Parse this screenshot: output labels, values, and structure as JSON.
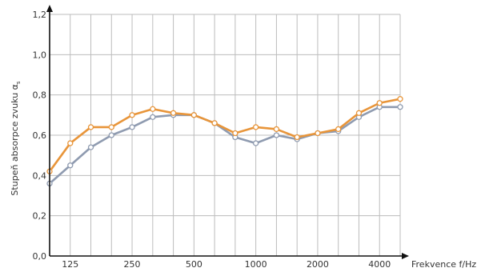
{
  "chart_data": {
    "type": "line",
    "xlabel": "Frekvence f/Hz",
    "ylabel": "Stupeň absorpce zvuku α",
    "ylabel_sub": "s",
    "ylim": [
      0,
      1.2
    ],
    "yticks": [
      "0,0",
      "0,2",
      "0,4",
      "0,6",
      "0,8",
      "1,0",
      "1,2"
    ],
    "x": [
      100,
      125,
      160,
      200,
      250,
      315,
      400,
      500,
      630,
      800,
      1000,
      1250,
      1600,
      2000,
      2500,
      3150,
      4000,
      5000
    ],
    "xticks": [
      {
        "value": 125,
        "label": "125"
      },
      {
        "value": 250,
        "label": "250"
      },
      {
        "value": 500,
        "label": "500"
      },
      {
        "value": 1000,
        "label": "1000"
      },
      {
        "value": 2000,
        "label": "2000"
      },
      {
        "value": 4000,
        "label": "4000"
      }
    ],
    "grid": true,
    "series": [
      {
        "color": "#e8953a",
        "values": [
          0.42,
          0.56,
          0.64,
          0.64,
          0.7,
          0.73,
          0.71,
          0.7,
          0.66,
          0.61,
          0.64,
          0.63,
          0.59,
          0.61,
          0.63,
          0.71,
          0.76,
          0.78
        ]
      },
      {
        "color": "#8f9bb0",
        "values": [
          0.36,
          0.45,
          0.54,
          0.6,
          0.64,
          0.69,
          0.7,
          0.7,
          0.66,
          0.59,
          0.56,
          0.6,
          0.58,
          0.61,
          0.62,
          0.69,
          0.74,
          0.74
        ]
      }
    ]
  }
}
